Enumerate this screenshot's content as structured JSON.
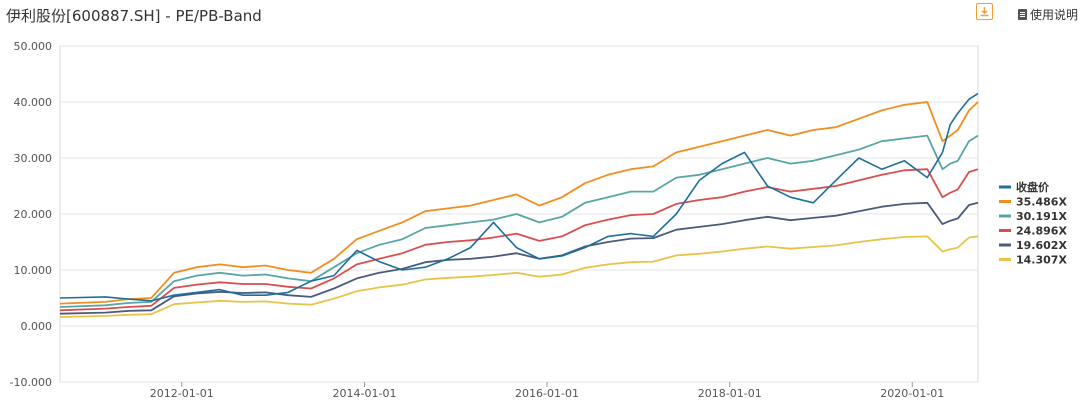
{
  "header": {
    "title": "伊利股份[600887.SH] - PE/PB-Band",
    "download_icon": "download-icon",
    "manual_icon": "document-icon",
    "manual_label": "使用说明"
  },
  "chart_data": {
    "type": "line",
    "title": "伊利股份[600887.SH] - PE/PB-Band",
    "xlabel": "",
    "ylabel": "",
    "ylim": [
      -10,
      50
    ],
    "yticks": [
      -10,
      0,
      10,
      20,
      30,
      40,
      50
    ],
    "ytick_labels": [
      "-10.000",
      "0.000",
      "10.000",
      "20.000",
      "30.000",
      "40.000",
      "50.000"
    ],
    "xlim": [
      "2010-09-01",
      "2020-09-20"
    ],
    "xticks": [
      "2012-01-01",
      "2014-01-01",
      "2016-01-01",
      "2018-01-01",
      "2020-01-01"
    ],
    "grid": {
      "horizontal": true,
      "vertical": false
    },
    "legend_position": "right",
    "x": [
      "2010-09-01",
      "2011-03-01",
      "2011-06-01",
      "2011-09-01",
      "2011-12-01",
      "2012-03-01",
      "2012-06-01",
      "2012-09-01",
      "2012-12-01",
      "2013-03-01",
      "2013-06-01",
      "2013-09-01",
      "2013-12-01",
      "2014-03-01",
      "2014-06-01",
      "2014-09-01",
      "2014-12-01",
      "2015-03-01",
      "2015-06-01",
      "2015-09-01",
      "2015-12-01",
      "2016-03-01",
      "2016-06-01",
      "2016-09-01",
      "2016-12-01",
      "2017-03-01",
      "2017-06-01",
      "2017-09-01",
      "2017-12-01",
      "2018-03-01",
      "2018-06-01",
      "2018-09-01",
      "2018-12-01",
      "2019-03-01",
      "2019-06-01",
      "2019-09-01",
      "2019-12-01",
      "2020-03-01",
      "2020-05-01",
      "2020-06-01",
      "2020-07-01",
      "2020-08-15",
      "2020-09-20"
    ],
    "series": [
      {
        "name": "收盘价",
        "color": "#1f6f9c",
        "values": [
          5.0,
          5.2,
          4.8,
          4.5,
          5.5,
          6.0,
          6.5,
          5.5,
          5.5,
          6.0,
          8.0,
          9.0,
          13.5,
          11.5,
          10.0,
          10.5,
          12.0,
          14.0,
          18.5,
          14.0,
          12.0,
          12.5,
          14.0,
          16.0,
          16.5,
          16.0,
          20.0,
          26.0,
          29.0,
          31.0,
          25.0,
          23.0,
          22.0,
          26.0,
          30.0,
          28.0,
          29.5,
          26.5,
          31.0,
          36.0,
          38.0,
          40.5,
          41.5
        ]
      },
      {
        "name": "35.486X",
        "color": "#f28e20",
        "values": [
          4.0,
          4.3,
          4.8,
          5.0,
          9.5,
          10.5,
          11.0,
          10.5,
          10.8,
          10.0,
          9.5,
          12.0,
          15.5,
          17.0,
          18.5,
          20.5,
          21.0,
          21.5,
          22.5,
          23.5,
          21.5,
          23.0,
          25.5,
          27.0,
          28.0,
          28.5,
          31.0,
          32.0,
          33.0,
          34.0,
          35.0,
          34.0,
          35.0,
          35.5,
          37.0,
          38.5,
          39.5,
          40.0,
          33.0,
          34.0,
          35.0,
          38.5,
          40.0
        ]
      },
      {
        "name": "30.191X",
        "color": "#5aa5a5",
        "values": [
          3.4,
          3.7,
          4.1,
          4.3,
          8.0,
          9.0,
          9.5,
          9.0,
          9.2,
          8.5,
          8.0,
          10.5,
          13.0,
          14.5,
          15.5,
          17.5,
          18.0,
          18.5,
          19.0,
          20.0,
          18.5,
          19.5,
          22.0,
          23.0,
          24.0,
          24.0,
          26.5,
          27.0,
          28.0,
          29.0,
          30.0,
          29.0,
          29.5,
          30.5,
          31.5,
          33.0,
          33.5,
          34.0,
          28.0,
          29.0,
          29.5,
          33.0,
          34.0
        ]
      },
      {
        "name": "24.896X",
        "color": "#d94f4f",
        "values": [
          2.8,
          3.1,
          3.4,
          3.6,
          6.8,
          7.4,
          7.8,
          7.5,
          7.5,
          7.0,
          6.7,
          8.5,
          11.0,
          12.0,
          13.0,
          14.5,
          15.0,
          15.3,
          15.8,
          16.5,
          15.2,
          16.0,
          18.0,
          19.0,
          19.8,
          20.0,
          21.8,
          22.5,
          23.0,
          24.0,
          24.8,
          24.0,
          24.5,
          25.0,
          26.0,
          27.0,
          27.8,
          28.0,
          23.0,
          23.8,
          24.4,
          27.5,
          28.0
        ]
      },
      {
        "name": "19.602X",
        "color": "#4a5b7c",
        "values": [
          2.2,
          2.4,
          2.7,
          2.8,
          5.3,
          5.8,
          6.1,
          5.9,
          6.0,
          5.5,
          5.2,
          6.7,
          8.5,
          9.5,
          10.2,
          11.4,
          11.8,
          12.0,
          12.4,
          13.0,
          12.0,
          12.6,
          14.2,
          15.0,
          15.6,
          15.7,
          17.2,
          17.7,
          18.2,
          18.9,
          19.5,
          18.9,
          19.3,
          19.7,
          20.5,
          21.3,
          21.8,
          22.0,
          18.2,
          18.8,
          19.2,
          21.6,
          22.0
        ]
      },
      {
        "name": "14.307X",
        "color": "#e8c34a",
        "values": [
          1.6,
          1.8,
          2.0,
          2.1,
          3.9,
          4.2,
          4.5,
          4.3,
          4.4,
          4.0,
          3.8,
          4.9,
          6.2,
          6.9,
          7.4,
          8.3,
          8.6,
          8.8,
          9.1,
          9.5,
          8.8,
          9.2,
          10.4,
          11.0,
          11.4,
          11.5,
          12.6,
          12.9,
          13.3,
          13.8,
          14.2,
          13.8,
          14.1,
          14.4,
          15.0,
          15.5,
          15.9,
          16.0,
          13.3,
          13.7,
          14.0,
          15.8,
          16.0
        ]
      }
    ]
  }
}
